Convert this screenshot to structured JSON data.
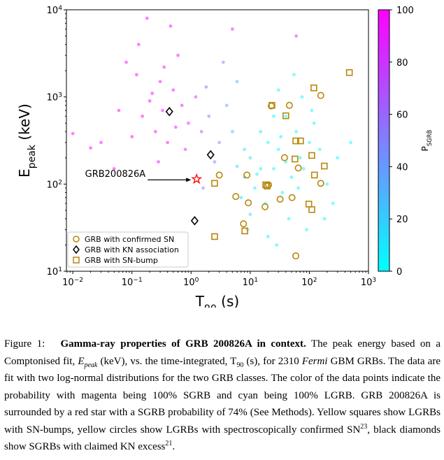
{
  "chart_data": {
    "type": "scatter",
    "xlabel": "T_{90} (s)",
    "ylabel": "E_{peak} (keV)",
    "log_x": true,
    "log_y": true,
    "xlim": [
      0.0078,
      1000
    ],
    "ylim": [
      10,
      10000
    ],
    "xticks": [
      {
        "value": 0.01,
        "label": "10^{−2}"
      },
      {
        "value": 0.1,
        "label": "10^{−1}"
      },
      {
        "value": 1,
        "label": "10^{0}"
      },
      {
        "value": 10,
        "label": "10^{1}"
      },
      {
        "value": 100,
        "label": "10^{2}"
      },
      {
        "value": 1000,
        "label": "10^{3}"
      }
    ],
    "yticks": [
      {
        "value": 10,
        "label": "10^{1}"
      },
      {
        "value": 100,
        "label": "10^{2}"
      },
      {
        "value": 1000,
        "label": "10^{3}"
      },
      {
        "value": 10000,
        "label": "10^{4}"
      }
    ],
    "colorbar": {
      "label": "P_{SGRB}",
      "lim": [
        0,
        100
      ],
      "ticks": [
        0,
        20,
        40,
        60,
        80,
        100
      ],
      "colormap": "cool"
    },
    "points": {
      "x": [
        0.08,
        0.12,
        0.2,
        0.3,
        0.15,
        0.5,
        0.7,
        0.25,
        0.4,
        0.1,
        0.06,
        0.9,
        0.35,
        0.6,
        0.18,
        0.45,
        0.05,
        0.03,
        0.01,
        0.22,
        1.2,
        0.8,
        0.28,
        1.5,
        0.13,
        0.55,
        5,
        60,
        0.02,
        0.33,
        2,
        3,
        1.8,
        4,
        2.5,
        6,
        3.5,
        1.6,
        8,
        5,
        10,
        15,
        20,
        30,
        40,
        50,
        70,
        100,
        25,
        12,
        18,
        35,
        60,
        80,
        150,
        200,
        45,
        10,
        7,
        30,
        120,
        300,
        250,
        500,
        20,
        90,
        15,
        40,
        8,
        55,
        25,
        65,
        110,
        13,
        33,
        180,
        6,
        9,
        28,
        75
      ],
      "y": [
        2500,
        1800,
        900,
        1500,
        600,
        1200,
        800,
        400,
        300,
        350,
        700,
        500,
        2200,
        3000,
        8000,
        6500,
        150,
        300,
        380,
        1100,
        1000,
        250,
        180,
        400,
        4000,
        450,
        6000,
        5000,
        260,
        700,
        600,
        300,
        1300,
        800,
        180,
        1500,
        2500,
        90,
        120,
        400,
        200,
        150,
        300,
        250,
        180,
        120,
        200,
        300,
        600,
        90,
        60,
        80,
        400,
        150,
        250,
        100,
        40,
        45,
        70,
        1200,
        500,
        200,
        60,
        300,
        25,
        30,
        400,
        600,
        250,
        1800,
        150,
        90,
        700,
        130,
        350,
        40,
        160,
        30,
        20,
        1000
      ],
      "p": [
        99,
        99,
        98,
        97,
        99,
        95,
        92,
        97,
        95,
        99,
        99,
        85,
        97,
        94,
        99,
        97,
        99,
        99,
        100,
        98,
        80,
        88,
        96,
        70,
        99,
        93,
        90,
        85,
        100,
        97,
        55,
        45,
        60,
        40,
        50,
        35,
        50,
        55,
        25,
        30,
        8,
        5,
        4,
        3,
        2,
        2,
        2,
        1,
        4,
        6,
        5,
        3,
        2,
        1,
        1,
        1,
        2,
        8,
        12,
        3,
        1,
        1,
        1,
        1,
        5,
        1,
        5,
        2,
        12,
        2,
        4,
        2,
        1,
        6,
        3,
        1,
        15,
        10,
        4,
        1
      ]
    },
    "series": [
      {
        "name": "GRB with confirmed SN",
        "color": "#b8860b",
        "marker": "circle",
        "x": [
          156,
          22.7,
          46,
          38,
          65,
          3.0,
          8.8,
          20.4,
          156,
          5.7,
          51,
          32,
          9.3,
          17.8,
          7.7,
          59
        ],
        "values": [
          1040,
          787,
          801,
          201,
          153,
          127,
          127,
          98,
          102,
          72,
          70,
          67,
          61,
          55,
          35,
          15
        ]
      },
      {
        "name": "GRB with KN association",
        "color": "#000000",
        "marker": "diamond",
        "x": [
          0.43,
          2.14,
          1.15
        ],
        "values": [
          679,
          217,
          38
        ]
      },
      {
        "name": "GRB with SN-bump",
        "color": "#b8860b",
        "marker": "square",
        "x": [
          475,
          119,
          23.3,
          40,
          59,
          71,
          57,
          110,
          179,
          122,
          18.3,
          19.3,
          2.5,
          98,
          110,
          8.1,
          2.5
        ],
        "values": [
          1905,
          1270,
          801,
          608,
          313,
          313,
          194,
          213,
          161,
          127,
          98,
          95,
          102,
          59,
          51,
          29,
          25
        ]
      }
    ],
    "highlight": {
      "text": "GRB200826A",
      "x": 1.24,
      "y": 114,
      "color": "#ff0000"
    },
    "legend": "lower left"
  },
  "caption": [
    {
      "text": "Figure 1:   "
    },
    {
      "text": "Gamma-ray properties of GRB 200826A in context.",
      "bold": true
    },
    {
      "text": " The peak energy based on a Comptonised fit, "
    },
    {
      "text": "E",
      "italic": true
    },
    {
      "text": "peak",
      "italic": true,
      "sub": true
    },
    {
      "text": " (keV), vs. the time-integrated, T"
    },
    {
      "text": "90",
      "sub": true
    },
    {
      "text": " (s), for 2310 "
    },
    {
      "text": "Fermi",
      "italic": true
    },
    {
      "text": " GBM GRBs. The data are fit with two log-normal distributions for the two GRB classes. The color of the data points indicate the probability with magenta being 100% SGRB and cyan being 100% LGRB. GRB 200826A is surrounded by a red star with a SGRB probability of 74% (See Methods). Yellow squares show LGRBs with SN-bumps, yellow circles show LGRBs with spectroscopically confirmed SN"
    },
    {
      "text": "23",
      "sup": true
    },
    {
      "text": ", black diamonds show SGRBs with claimed KN excess"
    },
    {
      "text": "21",
      "sup": true
    },
    {
      "text": "."
    }
  ]
}
